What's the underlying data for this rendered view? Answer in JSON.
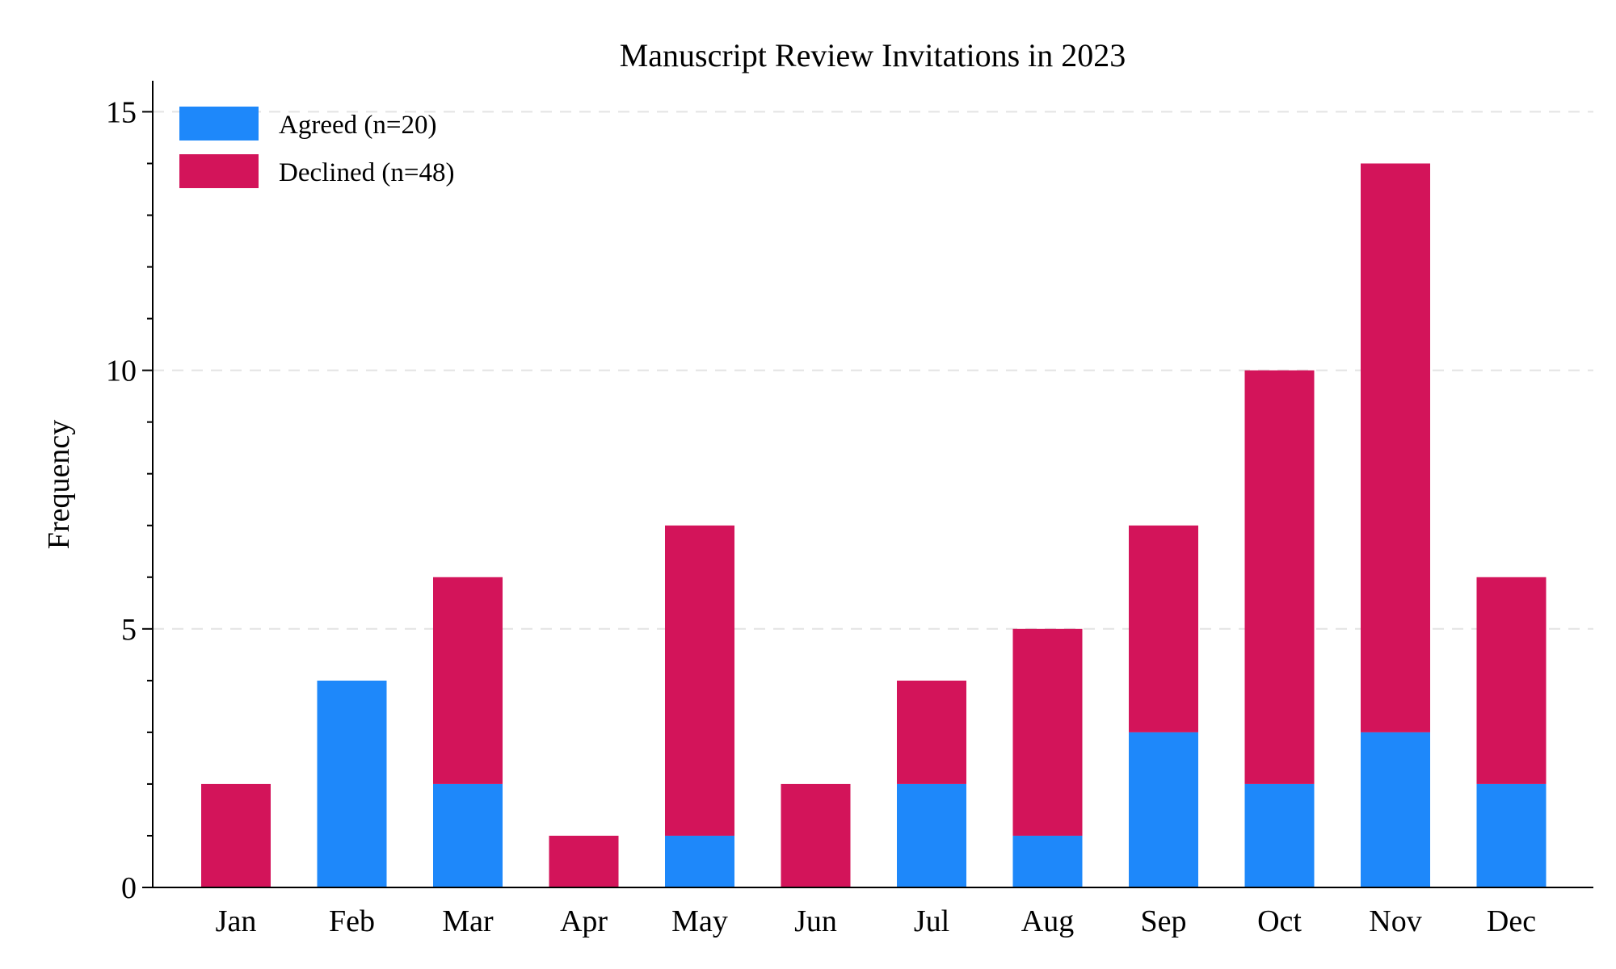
{
  "chart_data": {
    "type": "bar",
    "stacked": true,
    "title": "Manuscript Review Invitations in 2023",
    "xlabel": "",
    "ylabel": "Frequency",
    "ylim": [
      0,
      15.6
    ],
    "yticks": [
      0,
      5,
      10,
      15
    ],
    "grid": "horizontal dashed at major ticks",
    "legend_position": "top-left",
    "categories": [
      "Jan",
      "Feb",
      "Mar",
      "Apr",
      "May",
      "Jun",
      "Jul",
      "Aug",
      "Sep",
      "Oct",
      "Nov",
      "Dec"
    ],
    "series": [
      {
        "name": "Agreed (n=20)",
        "color": "#1E88FA",
        "values": [
          0,
          4,
          2,
          0,
          1,
          0,
          2,
          1,
          3,
          2,
          3,
          2
        ]
      },
      {
        "name": "Declined (n=48)",
        "color": "#D3145A",
        "values": [
          2,
          0,
          4,
          1,
          6,
          2,
          2,
          4,
          4,
          8,
          11,
          4
        ]
      }
    ]
  }
}
